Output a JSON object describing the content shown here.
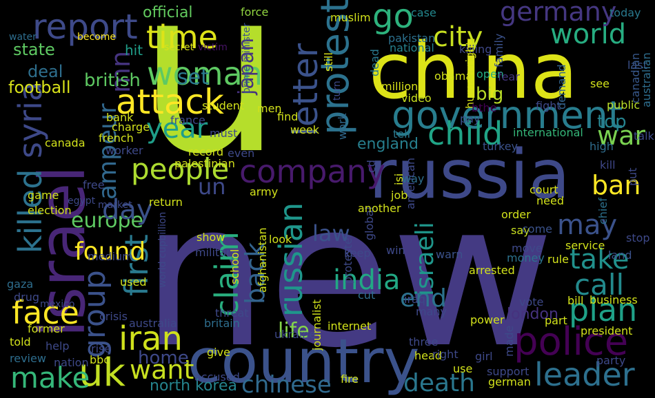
{
  "background_color": "#000000",
  "words": [
    {
      "text": "u",
      "color": "#b5de2b"
    },
    {
      "text": "new",
      "color": "#443a83"
    },
    {
      "text": "china",
      "color": "#dde318"
    },
    {
      "text": "russia",
      "color": "#3e4989"
    },
    {
      "text": "israel",
      "color": "#482677"
    },
    {
      "text": "country",
      "color": "#3b528b"
    },
    {
      "text": "government",
      "color": "#287d8e"
    },
    {
      "text": "police",
      "color": "#440154"
    },
    {
      "text": "world",
      "color": "#27ad81"
    },
    {
      "text": "woman",
      "color": "#5ec962"
    },
    {
      "text": "attack",
      "color": "#fde725"
    },
    {
      "text": "people",
      "color": "#addc30"
    },
    {
      "text": "year",
      "color": "#1f9e89"
    },
    {
      "text": "report",
      "color": "#3e4a89"
    },
    {
      "text": "time",
      "color": "#dde318"
    },
    {
      "text": "letter",
      "color": "#3b528b"
    },
    {
      "text": "protest",
      "color": "#2c728e"
    },
    {
      "text": "city",
      "color": "#c8e020"
    },
    {
      "text": "go",
      "color": "#2db27d"
    },
    {
      "text": "germany",
      "color": "#453781"
    },
    {
      "text": "child",
      "color": "#20a486"
    },
    {
      "text": "war",
      "color": "#7ad151"
    },
    {
      "text": "company",
      "color": "#481a6c"
    },
    {
      "text": "top",
      "color": "#25838e"
    },
    {
      "text": "ban",
      "color": "#fde725"
    },
    {
      "text": "may",
      "color": "#3b528b"
    },
    {
      "text": "take",
      "color": "#21918c"
    },
    {
      "text": "call",
      "color": "#238a8d"
    },
    {
      "text": "plan",
      "color": "#1fa188"
    },
    {
      "text": "leader",
      "color": "#2d708e"
    },
    {
      "text": "india",
      "color": "#22a884"
    },
    {
      "text": "russian",
      "color": "#1f968b"
    },
    {
      "text": "back",
      "color": "#33638d"
    },
    {
      "text": "claim",
      "color": "#29af7f"
    },
    {
      "text": "first",
      "color": "#29798e"
    },
    {
      "text": "group",
      "color": "#3b528b"
    },
    {
      "text": "found",
      "color": "#fde725"
    },
    {
      "text": "europe",
      "color": "#5ec962"
    },
    {
      "text": "day",
      "color": "#3b528b"
    },
    {
      "text": "un",
      "color": "#3e4989"
    },
    {
      "text": "iran",
      "color": "#d0e11c"
    },
    {
      "text": "face",
      "color": "#fde725"
    },
    {
      "text": "uk",
      "color": "#c2df23"
    },
    {
      "text": "make",
      "color": "#35b779"
    },
    {
      "text": "want",
      "color": "#c8e020"
    },
    {
      "text": "killed",
      "color": "#2c728e"
    },
    {
      "text": "syria",
      "color": "#3e4989"
    },
    {
      "text": "ampeur",
      "color": "#31688e"
    },
    {
      "text": "mn",
      "color": "#463480"
    },
    {
      "text": "law",
      "color": "#3b528b"
    },
    {
      "text": "life",
      "color": "#84d44b"
    },
    {
      "text": "end",
      "color": "#2c728e"
    },
    {
      "text": "israeli",
      "color": "#1f968b"
    },
    {
      "text": "death",
      "color": "#2a778e"
    },
    {
      "text": "chinese",
      "color": "#306a8e"
    },
    {
      "text": "football",
      "color": "#d8e219"
    },
    {
      "text": "deal",
      "color": "#2e6f8e"
    },
    {
      "text": "state",
      "color": "#5ec962"
    },
    {
      "text": "british",
      "color": "#5ec962"
    },
    {
      "text": "set",
      "color": "#2a788e"
    },
    {
      "text": "hit",
      "color": "#1f9e89"
    },
    {
      "text": "japan",
      "color": "#46327e"
    },
    {
      "text": "official",
      "color": "#63cb5f"
    },
    {
      "text": "england",
      "color": "#277f8e"
    },
    {
      "text": "home",
      "color": "#3e4989"
    },
    {
      "text": "north korea",
      "color": "#25848e"
    },
    {
      "text": "london",
      "color": "#46327e"
    },
    {
      "text": "water",
      "color": "#2e6e8e"
    },
    {
      "text": "become",
      "color": "#fde725"
    },
    {
      "text": "secret",
      "color": "#d8e219"
    },
    {
      "text": "victim",
      "color": "#481467"
    },
    {
      "text": "force",
      "color": "#93d741"
    },
    {
      "text": "muslim",
      "color": "#d2e21b"
    },
    {
      "text": "case",
      "color": "#23888e"
    },
    {
      "text": "today",
      "color": "#29798e"
    },
    {
      "text": "pakistan",
      "color": "#2c718e"
    },
    {
      "text": "national",
      "color": "#26828e"
    },
    {
      "text": "killing",
      "color": "#3f4889"
    },
    {
      "text": "prime minister",
      "color": "#3b528b"
    },
    {
      "text": "still",
      "color": "#dae319"
    },
    {
      "text": "dead",
      "color": "#2a788e"
    },
    {
      "text": "million",
      "color": "#d8e219"
    },
    {
      "text": "video",
      "color": "#cae11f"
    },
    {
      "text": "obama",
      "color": "#d2e21b"
    },
    {
      "text": "open",
      "color": "#25ab82"
    },
    {
      "text": "big",
      "color": "#bade28"
    },
    {
      "text": "human right",
      "color": "#d8e219"
    },
    {
      "text": "family",
      "color": "#3b528b"
    },
    {
      "text": "fear",
      "color": "#453781"
    },
    {
      "text": "last",
      "color": "#3b528b"
    },
    {
      "text": "canadian",
      "color": "#38598c"
    },
    {
      "text": "australian",
      "color": "#2e6e8e"
    },
    {
      "text": "see",
      "color": "#d2e21b"
    },
    {
      "text": "fight",
      "color": "#3e4989"
    },
    {
      "text": "demand",
      "color": "#33638d"
    },
    {
      "text": "public",
      "color": "#bade28"
    },
    {
      "text": "pay",
      "color": "#3b528b"
    },
    {
      "text": "bthe",
      "color": "#440154"
    },
    {
      "text": "work",
      "color": "#31688e"
    },
    {
      "text": "tell",
      "color": "#2a788e"
    },
    {
      "text": "international",
      "color": "#35b779"
    },
    {
      "text": "talk",
      "color": "#3e4989"
    },
    {
      "text": "turkey",
      "color": "#3b528b"
    },
    {
      "text": "high",
      "color": "#2f6c8e"
    },
    {
      "text": "court",
      "color": "#d8e219"
    },
    {
      "text": "kill",
      "color": "#3f4788"
    },
    {
      "text": "need",
      "color": "#d2e21b"
    },
    {
      "text": "order",
      "color": "#d2e21b"
    },
    {
      "text": "say",
      "color": "#c8e020"
    },
    {
      "text": "come",
      "color": "#3b528b"
    },
    {
      "text": "put",
      "color": "#3e4989"
    },
    {
      "text": "money",
      "color": "#2c728e"
    },
    {
      "text": "rule",
      "color": "#d2e21b"
    },
    {
      "text": "chief",
      "color": "#2c718e"
    },
    {
      "text": "move",
      "color": "#3e4989"
    },
    {
      "text": "stop",
      "color": "#3e4989"
    },
    {
      "text": "service",
      "color": "#d2e21b"
    },
    {
      "text": "land",
      "color": "#3b528b"
    },
    {
      "text": "warn",
      "color": "#3b528b"
    },
    {
      "text": "arrested",
      "color": "#d2e21b"
    },
    {
      "text": "win",
      "color": "#3e4989"
    },
    {
      "text": "cut",
      "color": "#2e6e8e"
    },
    {
      "text": "iraq",
      "color": "#3e4989"
    },
    {
      "text": "many",
      "color": "#3e4989"
    },
    {
      "text": "vote",
      "color": "#3e4989"
    },
    {
      "text": "bill",
      "color": "#d2e21b"
    },
    {
      "text": "business",
      "color": "#d2e21b"
    },
    {
      "text": "part",
      "color": "#d2e21b"
    },
    {
      "text": "power",
      "color": "#d2e21b"
    },
    {
      "text": "president",
      "color": "#d2e21b"
    },
    {
      "text": "internet",
      "color": "#d2e21b"
    },
    {
      "text": "three",
      "color": "#3e4989"
    },
    {
      "text": "head",
      "color": "#d2e21b"
    },
    {
      "text": "right",
      "color": "#3e4989"
    },
    {
      "text": "made",
      "color": "#3e4989"
    },
    {
      "text": "girl",
      "color": "#3e4989"
    },
    {
      "text": "party",
      "color": "#3e4989"
    },
    {
      "text": "support",
      "color": "#3e4989"
    },
    {
      "text": "german",
      "color": "#d2e21b"
    },
    {
      "text": "use",
      "color": "#d2e21b"
    },
    {
      "text": "fire",
      "color": "#d2e21b"
    },
    {
      "text": "journalist",
      "color": "#d2e21b"
    },
    {
      "text": "ukraine",
      "color": "#3e4989"
    },
    {
      "text": "britain",
      "color": "#2e6e8e"
    },
    {
      "text": "threat",
      "color": "#3e4989"
    },
    {
      "text": "crisis",
      "color": "#3e4989"
    },
    {
      "text": "australia",
      "color": "#3e4989"
    },
    {
      "text": "former",
      "color": "#d2e21b"
    },
    {
      "text": "help",
      "color": "#3e4989"
    },
    {
      "text": "told",
      "color": "#d2e21b"
    },
    {
      "text": "review",
      "color": "#2e6e8e"
    },
    {
      "text": "nation",
      "color": "#3e4989"
    },
    {
      "text": "rise",
      "color": "#3e4989"
    },
    {
      "text": "bbc",
      "color": "#d2e21b"
    },
    {
      "text": "give",
      "color": "#d2e21b"
    },
    {
      "text": "accused",
      "color": "#3e4989"
    },
    {
      "text": "used",
      "color": "#d2e21b"
    },
    {
      "text": "world cupbillion",
      "color": "#3e4989"
    },
    {
      "text": "gaza",
      "color": "#2e6e8e"
    },
    {
      "text": "drug",
      "color": "#3e4989"
    },
    {
      "text": "mexico",
      "color": "#3e4989"
    },
    {
      "text": "military",
      "color": "#3e4989"
    },
    {
      "text": "show",
      "color": "#d2e21b"
    },
    {
      "text": "medium",
      "color": "#3e4989"
    },
    {
      "text": "school",
      "color": "#d2e21b"
    },
    {
      "text": "egypt",
      "color": "#3e4989"
    },
    {
      "text": "election",
      "color": "#d2e21b"
    },
    {
      "text": "game",
      "color": "#d2e21b"
    },
    {
      "text": "market",
      "color": "#3e4989"
    },
    {
      "text": "free",
      "color": "#3e4989"
    },
    {
      "text": "return",
      "color": "#d2e21b"
    },
    {
      "text": "army",
      "color": "#d2e21b"
    },
    {
      "text": "afghanistan",
      "color": "#d2e21b"
    },
    {
      "text": "protester",
      "color": "#3e4989"
    },
    {
      "text": "global",
      "color": "#3e4989"
    },
    {
      "text": "look",
      "color": "#d2e21b"
    },
    {
      "text": "keep",
      "color": "#3e4989"
    },
    {
      "text": "job",
      "color": "#d2e21b"
    },
    {
      "text": "american",
      "color": "#3e4989"
    },
    {
      "text": "isi",
      "color": "#d2e21b"
    },
    {
      "text": "cd",
      "color": "#3e4989"
    },
    {
      "text": "way",
      "color": "#2e6e8e"
    },
    {
      "text": "another",
      "color": "#d2e21b"
    },
    {
      "text": "canada",
      "color": "#d2e21b"
    },
    {
      "text": "worker",
      "color": "#3e4989"
    },
    {
      "text": "french",
      "color": "#d2e21b"
    },
    {
      "text": "charge",
      "color": "#d2e21b"
    },
    {
      "text": "bank",
      "color": "#d2e21b"
    },
    {
      "text": "palestinian",
      "color": "#d2e21b"
    },
    {
      "text": "record",
      "color": "#d2e21b"
    },
    {
      "text": "even",
      "color": "#3e4989"
    },
    {
      "text": "must",
      "color": "#3e4989"
    },
    {
      "text": "week",
      "color": "#d2e21b"
    },
    {
      "text": "find",
      "color": "#d2e21b"
    },
    {
      "text": "france",
      "color": "#3e4989"
    },
    {
      "text": "student",
      "color": "#d2e21b"
    },
    {
      "text": "men",
      "color": "#d2e21b"
    },
    {
      "text": "turn",
      "color": "#3e4989"
    }
  ]
}
